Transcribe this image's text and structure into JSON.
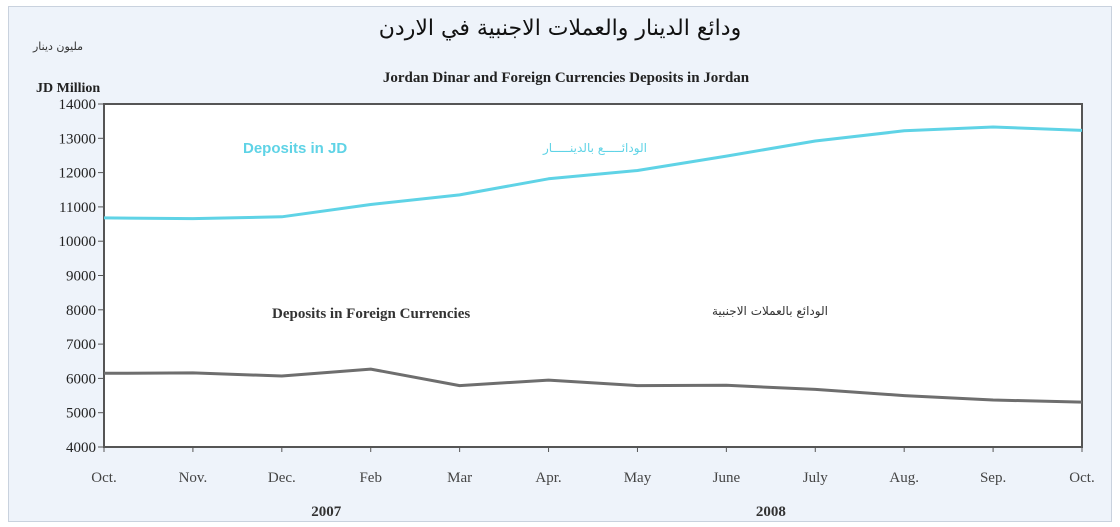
{
  "chart_data": {
    "type": "line",
    "title_ar": "ودائع الدينار والعملات الاجنبية في الاردن",
    "title": "Jordan Dinar and Foreign Currencies Deposits in Jordan",
    "ylabel_ar": "مليون دينار",
    "ylabel": "JD Million",
    "ylim": [
      4000,
      14000
    ],
    "yticks": [
      4000,
      5000,
      6000,
      7000,
      8000,
      9000,
      10000,
      11000,
      12000,
      13000,
      14000
    ],
    "categories": [
      "Oct.",
      "Nov.",
      "Dec.",
      "Feb",
      "Mar",
      "Apr.",
      "May",
      "June",
      "July",
      "Aug.",
      "Sep.",
      "Oct."
    ],
    "years": [
      {
        "label": "2007",
        "under_category": 2.5
      },
      {
        "label": "2008",
        "under_category": 7.5
      }
    ],
    "grid": false,
    "series": [
      {
        "name": "Deposits in JD",
        "name_ar": "الودائـــــع بالدينـــــار",
        "color": "#5fd3e6",
        "values": [
          10680,
          10660,
          10710,
          11070,
          11350,
          11820,
          12060,
          12480,
          12920,
          13220,
          13330,
          13230
        ]
      },
      {
        "name": "Deposits in Foreign Currencies",
        "name_ar": "الودائع بالعملات الاجنبية",
        "color": "#6e6e6e",
        "values": [
          6150,
          6160,
          6070,
          6270,
          5790,
          5950,
          5790,
          5800,
          5680,
          5500,
          5370,
          5310
        ]
      }
    ]
  }
}
